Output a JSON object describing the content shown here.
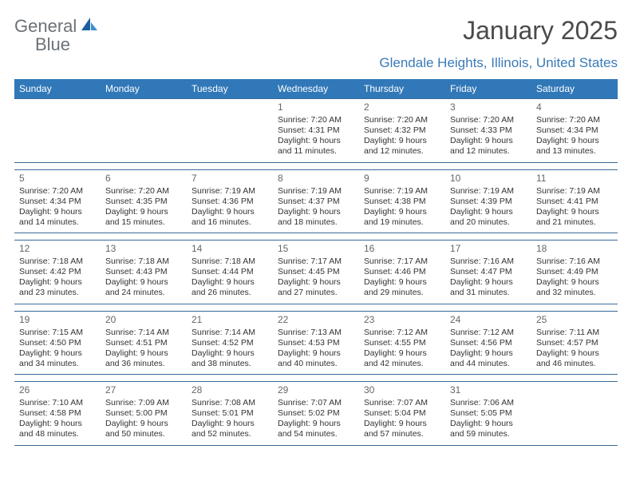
{
  "brand": {
    "word1": "General",
    "word2": "Blue"
  },
  "title": "January 2025",
  "location": "Glendale Heights, Illinois, United States",
  "day_headers": [
    "Sunday",
    "Monday",
    "Tuesday",
    "Wednesday",
    "Thursday",
    "Friday",
    "Saturday"
  ],
  "colors": {
    "header_bg": "#3178b8",
    "header_fg": "#ffffff",
    "rule": "#3a6a98",
    "location_fg": "#3a7ab8",
    "logo_blue": "#1e5f9e",
    "logo_gray": "#6b7278"
  },
  "weeks": [
    [
      null,
      null,
      null,
      {
        "n": "1",
        "sr": "Sunrise: 7:20 AM",
        "ss": "Sunset: 4:31 PM",
        "d1": "Daylight: 9 hours",
        "d2": "and 11 minutes."
      },
      {
        "n": "2",
        "sr": "Sunrise: 7:20 AM",
        "ss": "Sunset: 4:32 PM",
        "d1": "Daylight: 9 hours",
        "d2": "and 12 minutes."
      },
      {
        "n": "3",
        "sr": "Sunrise: 7:20 AM",
        "ss": "Sunset: 4:33 PM",
        "d1": "Daylight: 9 hours",
        "d2": "and 12 minutes."
      },
      {
        "n": "4",
        "sr": "Sunrise: 7:20 AM",
        "ss": "Sunset: 4:34 PM",
        "d1": "Daylight: 9 hours",
        "d2": "and 13 minutes."
      }
    ],
    [
      {
        "n": "5",
        "sr": "Sunrise: 7:20 AM",
        "ss": "Sunset: 4:34 PM",
        "d1": "Daylight: 9 hours",
        "d2": "and 14 minutes."
      },
      {
        "n": "6",
        "sr": "Sunrise: 7:20 AM",
        "ss": "Sunset: 4:35 PM",
        "d1": "Daylight: 9 hours",
        "d2": "and 15 minutes."
      },
      {
        "n": "7",
        "sr": "Sunrise: 7:19 AM",
        "ss": "Sunset: 4:36 PM",
        "d1": "Daylight: 9 hours",
        "d2": "and 16 minutes."
      },
      {
        "n": "8",
        "sr": "Sunrise: 7:19 AM",
        "ss": "Sunset: 4:37 PM",
        "d1": "Daylight: 9 hours",
        "d2": "and 18 minutes."
      },
      {
        "n": "9",
        "sr": "Sunrise: 7:19 AM",
        "ss": "Sunset: 4:38 PM",
        "d1": "Daylight: 9 hours",
        "d2": "and 19 minutes."
      },
      {
        "n": "10",
        "sr": "Sunrise: 7:19 AM",
        "ss": "Sunset: 4:39 PM",
        "d1": "Daylight: 9 hours",
        "d2": "and 20 minutes."
      },
      {
        "n": "11",
        "sr": "Sunrise: 7:19 AM",
        "ss": "Sunset: 4:41 PM",
        "d1": "Daylight: 9 hours",
        "d2": "and 21 minutes."
      }
    ],
    [
      {
        "n": "12",
        "sr": "Sunrise: 7:18 AM",
        "ss": "Sunset: 4:42 PM",
        "d1": "Daylight: 9 hours",
        "d2": "and 23 minutes."
      },
      {
        "n": "13",
        "sr": "Sunrise: 7:18 AM",
        "ss": "Sunset: 4:43 PM",
        "d1": "Daylight: 9 hours",
        "d2": "and 24 minutes."
      },
      {
        "n": "14",
        "sr": "Sunrise: 7:18 AM",
        "ss": "Sunset: 4:44 PM",
        "d1": "Daylight: 9 hours",
        "d2": "and 26 minutes."
      },
      {
        "n": "15",
        "sr": "Sunrise: 7:17 AM",
        "ss": "Sunset: 4:45 PM",
        "d1": "Daylight: 9 hours",
        "d2": "and 27 minutes."
      },
      {
        "n": "16",
        "sr": "Sunrise: 7:17 AM",
        "ss": "Sunset: 4:46 PM",
        "d1": "Daylight: 9 hours",
        "d2": "and 29 minutes."
      },
      {
        "n": "17",
        "sr": "Sunrise: 7:16 AM",
        "ss": "Sunset: 4:47 PM",
        "d1": "Daylight: 9 hours",
        "d2": "and 31 minutes."
      },
      {
        "n": "18",
        "sr": "Sunrise: 7:16 AM",
        "ss": "Sunset: 4:49 PM",
        "d1": "Daylight: 9 hours",
        "d2": "and 32 minutes."
      }
    ],
    [
      {
        "n": "19",
        "sr": "Sunrise: 7:15 AM",
        "ss": "Sunset: 4:50 PM",
        "d1": "Daylight: 9 hours",
        "d2": "and 34 minutes."
      },
      {
        "n": "20",
        "sr": "Sunrise: 7:14 AM",
        "ss": "Sunset: 4:51 PM",
        "d1": "Daylight: 9 hours",
        "d2": "and 36 minutes."
      },
      {
        "n": "21",
        "sr": "Sunrise: 7:14 AM",
        "ss": "Sunset: 4:52 PM",
        "d1": "Daylight: 9 hours",
        "d2": "and 38 minutes."
      },
      {
        "n": "22",
        "sr": "Sunrise: 7:13 AM",
        "ss": "Sunset: 4:53 PM",
        "d1": "Daylight: 9 hours",
        "d2": "and 40 minutes."
      },
      {
        "n": "23",
        "sr": "Sunrise: 7:12 AM",
        "ss": "Sunset: 4:55 PM",
        "d1": "Daylight: 9 hours",
        "d2": "and 42 minutes."
      },
      {
        "n": "24",
        "sr": "Sunrise: 7:12 AM",
        "ss": "Sunset: 4:56 PM",
        "d1": "Daylight: 9 hours",
        "d2": "and 44 minutes."
      },
      {
        "n": "25",
        "sr": "Sunrise: 7:11 AM",
        "ss": "Sunset: 4:57 PM",
        "d1": "Daylight: 9 hours",
        "d2": "and 46 minutes."
      }
    ],
    [
      {
        "n": "26",
        "sr": "Sunrise: 7:10 AM",
        "ss": "Sunset: 4:58 PM",
        "d1": "Daylight: 9 hours",
        "d2": "and 48 minutes."
      },
      {
        "n": "27",
        "sr": "Sunrise: 7:09 AM",
        "ss": "Sunset: 5:00 PM",
        "d1": "Daylight: 9 hours",
        "d2": "and 50 minutes."
      },
      {
        "n": "28",
        "sr": "Sunrise: 7:08 AM",
        "ss": "Sunset: 5:01 PM",
        "d1": "Daylight: 9 hours",
        "d2": "and 52 minutes."
      },
      {
        "n": "29",
        "sr": "Sunrise: 7:07 AM",
        "ss": "Sunset: 5:02 PM",
        "d1": "Daylight: 9 hours",
        "d2": "and 54 minutes."
      },
      {
        "n": "30",
        "sr": "Sunrise: 7:07 AM",
        "ss": "Sunset: 5:04 PM",
        "d1": "Daylight: 9 hours",
        "d2": "and 57 minutes."
      },
      {
        "n": "31",
        "sr": "Sunrise: 7:06 AM",
        "ss": "Sunset: 5:05 PM",
        "d1": "Daylight: 9 hours",
        "d2": "and 59 minutes."
      },
      null
    ]
  ]
}
